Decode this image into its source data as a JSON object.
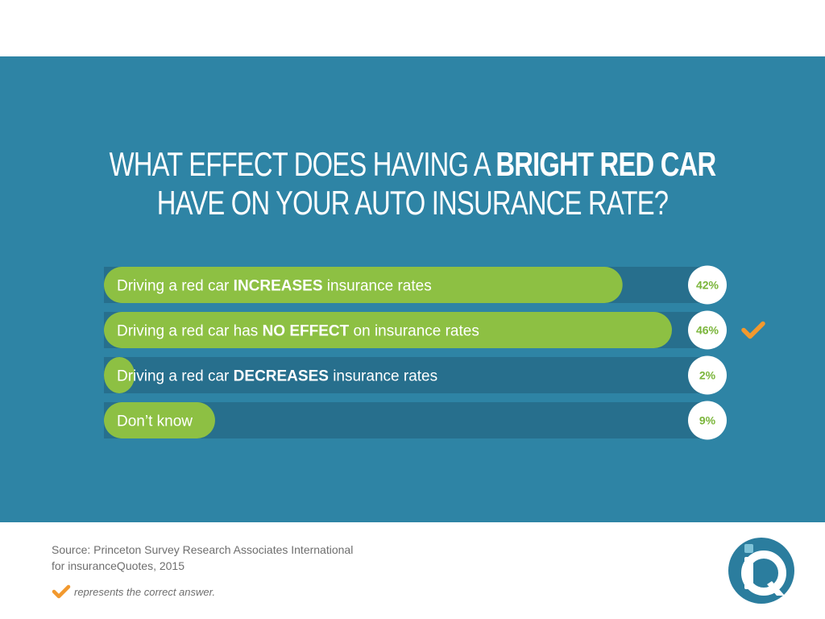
{
  "title": {
    "line1_pre": "WHAT EFFECT DOES HAVING A ",
    "line1_bold": "BRIGHT RED CAR",
    "line2": "HAVE ON YOUR AUTO INSURANCE RATE?"
  },
  "chart_data": {
    "type": "bar",
    "orientation": "horizontal",
    "title": "WHAT EFFECT DOES HAVING A BRIGHT RED CAR HAVE ON YOUR AUTO INSURANCE RATE?",
    "categories": [
      "Driving a red car INCREASES insurance rates",
      "Driving a red car has NO EFFECT on insurance rates",
      "Driving a red car DECREASES insurance rates",
      "Don't know"
    ],
    "label_parts": [
      [
        "Driving a red car ",
        "INCREASES",
        " insurance rates"
      ],
      [
        "Driving a red car has ",
        "NO EFFECT",
        " on insurance rates"
      ],
      [
        "Driving a red car ",
        "DECREASES",
        " insurance rates"
      ],
      [
        "Don’t know",
        "",
        ""
      ]
    ],
    "values": [
      42,
      46,
      2,
      9
    ],
    "value_labels": [
      "42%",
      "46%",
      "2%",
      "9%"
    ],
    "correct_index": 1,
    "xlim": [
      0,
      100
    ],
    "grid": false,
    "legend": "bottom-left"
  },
  "source": {
    "line1": "Source: Princeton Survey Research Associates International",
    "line2": "for insuranceQuotes, 2015"
  },
  "legend_text": "represents the correct answer.",
  "colors": {
    "panel_bg": "#2e84a5",
    "track": "#276f8d",
    "bar": "#8dc043",
    "pct_text": "#7ab53a",
    "check": "#f2992e",
    "logo_primary": "#2b7d9e",
    "logo_secondary": "#7fc3d8"
  },
  "icons": {
    "check": "check-icon",
    "logo": "iq-logo-icon"
  }
}
